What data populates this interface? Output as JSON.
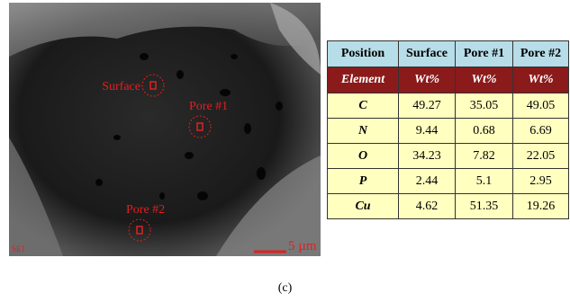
{
  "image": {
    "labels": {
      "surface": "Surface",
      "pore1": "Pore #1",
      "pore2": "Pore #2"
    },
    "detector": "SE1",
    "scale_bar": "5 µm"
  },
  "table": {
    "header": [
      "Position",
      "Surface",
      "Pore #1",
      "Pore #2"
    ],
    "units_row": [
      "Element",
      "Wt%",
      "Wt%",
      "Wt%"
    ],
    "rows": [
      [
        "C",
        49.27,
        35.05,
        49.05
      ],
      [
        "N",
        9.44,
        0.68,
        6.69
      ],
      [
        "O",
        34.23,
        7.82,
        22.05
      ],
      [
        "P",
        2.44,
        5.1,
        2.95
      ],
      [
        "Cu",
        4.62,
        51.35,
        19.26
      ]
    ]
  },
  "caption": "(c)"
}
